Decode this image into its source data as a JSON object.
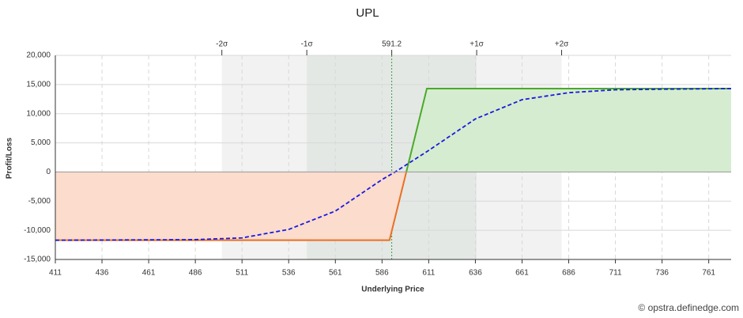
{
  "chart_data": {
    "type": "line",
    "title": "UPL",
    "xlabel": "Underlying Price",
    "ylabel": "Profit/Loss",
    "watermark": "© opstra.definedge.com",
    "xlim": [
      411,
      773
    ],
    "ylim": [
      -15000,
      20000
    ],
    "xticks": [
      411,
      436,
      461,
      486,
      511,
      536,
      561,
      586,
      611,
      636,
      661,
      686,
      711,
      736,
      761
    ],
    "yticks": [
      {
        "value": -15000,
        "label": "-15,000"
      },
      {
        "value": -10000,
        "label": "-10,000"
      },
      {
        "value": -5000,
        "label": "-5,000"
      },
      0,
      {
        "value": 5000,
        "label": "5,000"
      },
      {
        "value": 10000,
        "label": "10,000"
      },
      {
        "value": 15000,
        "label": "15,000"
      },
      {
        "value": 20000,
        "label": "20,000"
      }
    ],
    "top_ticks": [
      {
        "value": 500.2,
        "label": "-2σ"
      },
      {
        "value": 545.7,
        "label": "-1σ"
      },
      {
        "value": 591.2,
        "label": "591.2"
      },
      {
        "value": 636.7,
        "label": "+1σ"
      },
      {
        "value": 682.2,
        "label": "+2σ"
      }
    ],
    "grid": true,
    "profit_color": "#d5ecd0",
    "loss_color": "#fbdccd",
    "series": [
      {
        "color": "#4aaa28",
        "loss_color": "#ec6f22",
        "dash": false,
        "x": [
          411,
          590,
          599,
          610,
          773
        ],
        "values": [
          -11700,
          -11700,
          0,
          14300,
          14300
        ]
      },
      {
        "color": "#1a1adf",
        "dash": true,
        "x": [
          411,
          486,
          511,
          536,
          561,
          586,
          593,
          611,
          636,
          661,
          686,
          711,
          736,
          773
        ],
        "values": [
          -11700,
          -11600,
          -11300,
          -9850,
          -6700,
          -1300,
          0,
          3700,
          9100,
          12400,
          13600,
          14100,
          14200,
          14300
        ]
      }
    ]
  }
}
